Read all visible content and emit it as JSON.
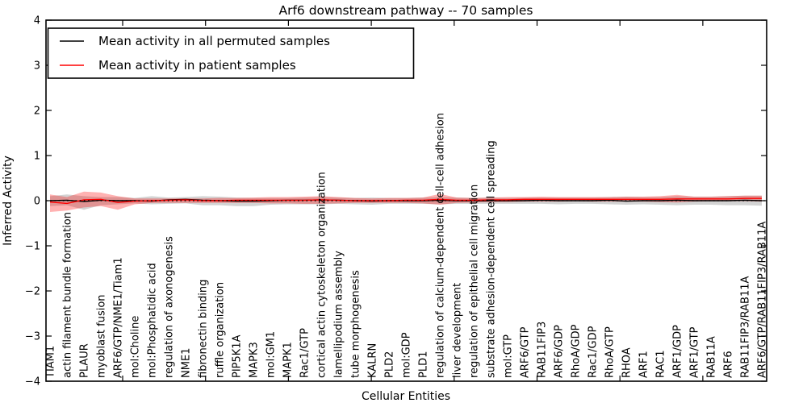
{
  "figure": {
    "legend": {
      "items": [
        {
          "label": "Mean activity in all permuted samples",
          "color": "#000000"
        },
        {
          "label": "Mean activity in patient samples",
          "color": "#ff0000"
        }
      ]
    }
  },
  "chart_data": {
    "type": "line",
    "title": "Arf6 downstream pathway -- 70 samples",
    "xlabel": "Cellular Entities",
    "ylabel": "Inferred Activity",
    "ylim": [
      -4,
      4
    ],
    "yticks": [
      4,
      3,
      2,
      1,
      0,
      -1,
      -2,
      -3,
      -4
    ],
    "yticklabels": [
      "4",
      "3",
      "2",
      "1",
      "0",
      "−1",
      "−2",
      "−3",
      "−4"
    ],
    "grid": false,
    "legend_position": "upper left",
    "zero_line": {
      "y": 0,
      "style": "dotted",
      "color": "#000000"
    },
    "band_colors": {
      "permuted": "rgba(128,128,128,0.35)",
      "patient": "rgba(255,0,0,0.30)"
    },
    "categories": [
      "TIAM1",
      "actin filament bundle formation",
      "PLAUR",
      "myoblast fusion",
      "ARF6/GTP/NME1/Tiam1",
      "mol:Choline",
      "mol:Phosphatidic acid",
      "regulation of axonogenesis",
      "NME1",
      "fibronectin binding",
      "ruffle organization",
      "PIP5K1A",
      "MAPK3",
      "mol:GM1",
      "MAPK1",
      "Rac1/GTP",
      "cortical actin cytoskeleton organization",
      "lamellipodium assembly",
      "tube morphogenesis",
      "KALRN",
      "PLD2",
      "mol:GDP",
      "PLD1",
      "regulation of calcium-dependent cell-cell adhesion",
      "liver development",
      "regulation of epithelial cell migration",
      "substrate adhesion-dependent cell spreading",
      "mol:GTP",
      "ARF6/GTP",
      "RAB11FIP3",
      "ARF6/GDP",
      "RhoA/GDP",
      "Rac1/GDP",
      "RhoA/GTP",
      "RHOA",
      "ARF1",
      "RAC1",
      "ARF1/GDP",
      "ARF1/GTP",
      "RAB11A",
      "ARF6",
      "RAB11FIP3/RAB11A",
      "ARF6/GTP/RAB11FIP3/RAB11A"
    ],
    "series": [
      {
        "name": "Mean activity in all permuted samples",
        "color": "#000000",
        "values": [
          0.0,
          0.01,
          -0.02,
          0.01,
          0.0,
          0.0,
          -0.01,
          0.02,
          0.03,
          0.01,
          0.0,
          -0.01,
          -0.01,
          0.0,
          0.01,
          0.01,
          0.02,
          0.01,
          0.0,
          -0.01,
          0.0,
          0.0,
          0.0,
          0.01,
          0.0,
          0.0,
          0.0,
          0.0,
          0.0,
          0.01,
          0.0,
          0.0,
          0.0,
          0.01,
          -0.01,
          0.0,
          0.0,
          0.01,
          0.0,
          0.0,
          0.0,
          0.01,
          0.0
        ]
      },
      {
        "name": "Mean activity in patient samples",
        "color": "#ff0000",
        "values": [
          -0.03,
          -0.06,
          0.02,
          0.03,
          -0.04,
          -0.01,
          0.0,
          0.01,
          0.02,
          0.0,
          0.0,
          0.01,
          0.01,
          0.01,
          0.01,
          0.01,
          0.02,
          0.01,
          0.0,
          0.0,
          0.0,
          0.01,
          0.01,
          0.03,
          0.01,
          0.01,
          0.02,
          0.02,
          0.03,
          0.03,
          0.03,
          0.03,
          0.03,
          0.03,
          0.03,
          0.03,
          0.03,
          0.04,
          0.04,
          0.04,
          0.04,
          0.05,
          0.05
        ]
      }
    ],
    "bands": [
      {
        "name": "permuted-std-band",
        "upper": [
          0.1,
          0.14,
          0.1,
          0.08,
          0.08,
          0.06,
          0.1,
          0.07,
          0.08,
          0.1,
          0.09,
          0.07,
          0.06,
          0.06,
          0.06,
          0.07,
          0.08,
          0.07,
          0.06,
          0.07,
          0.06,
          0.06,
          0.07,
          0.08,
          0.07,
          0.06,
          0.07,
          0.06,
          0.07,
          0.07,
          0.07,
          0.07,
          0.07,
          0.08,
          0.09,
          0.08,
          0.08,
          0.1,
          0.09,
          0.09,
          0.1,
          0.11,
          0.11
        ],
        "lower": [
          -0.12,
          -0.1,
          -0.2,
          -0.1,
          -0.08,
          -0.06,
          -0.08,
          -0.07,
          -0.06,
          -0.1,
          -0.1,
          -0.12,
          -0.12,
          -0.09,
          -0.08,
          -0.08,
          -0.08,
          -0.07,
          -0.08,
          -0.09,
          -0.07,
          -0.07,
          -0.07,
          -0.08,
          -0.07,
          -0.07,
          -0.07,
          -0.07,
          -0.07,
          -0.07,
          -0.08,
          -0.07,
          -0.07,
          -0.08,
          -0.09,
          -0.08,
          -0.09,
          -0.1,
          -0.09,
          -0.09,
          -0.1,
          -0.1,
          -0.11
        ]
      },
      {
        "name": "patient-std-band",
        "upper": [
          0.14,
          0.08,
          0.2,
          0.18,
          0.1,
          0.05,
          0.05,
          0.05,
          0.05,
          0.05,
          0.06,
          0.06,
          0.07,
          0.08,
          0.08,
          0.09,
          0.1,
          0.08,
          0.06,
          0.05,
          0.06,
          0.06,
          0.07,
          0.15,
          0.07,
          0.06,
          0.07,
          0.08,
          0.08,
          0.09,
          0.08,
          0.08,
          0.08,
          0.08,
          0.09,
          0.09,
          0.1,
          0.13,
          0.09,
          0.09,
          0.1,
          0.11,
          0.11
        ],
        "lower": [
          -0.25,
          -0.22,
          -0.15,
          -0.12,
          -0.2,
          -0.08,
          -0.05,
          -0.05,
          -0.05,
          -0.05,
          -0.05,
          -0.05,
          -0.05,
          -0.06,
          -0.06,
          -0.07,
          -0.07,
          -0.06,
          -0.05,
          -0.05,
          -0.05,
          -0.05,
          -0.06,
          -0.09,
          -0.05,
          -0.04,
          -0.03,
          -0.03,
          -0.02,
          -0.02,
          -0.02,
          -0.01,
          -0.02,
          -0.02,
          -0.02,
          -0.02,
          -0.03,
          -0.04,
          -0.02,
          -0.01,
          -0.01,
          -0.01,
          -0.02
        ]
      }
    ]
  }
}
